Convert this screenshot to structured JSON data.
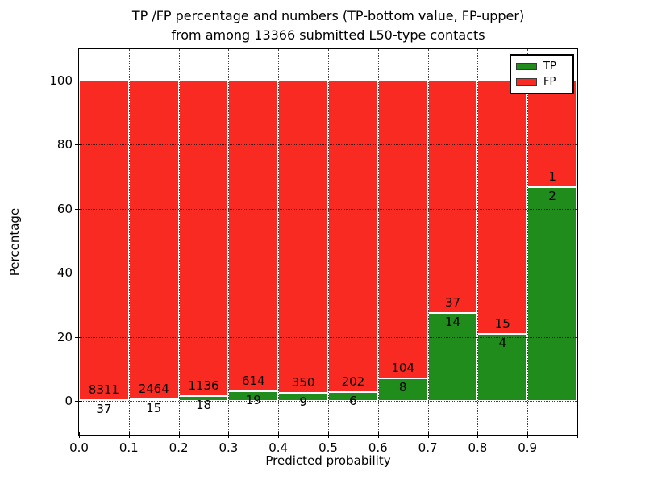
{
  "figure": {
    "background": "#ffffff",
    "title_line1": "TP /FP percentage and numbers (TP-bottom value, FP-upper)",
    "title_line2": "from among 13366 submitted L50-type contacts"
  },
  "chart_data": {
    "type": "bar",
    "stacked": true,
    "percent_normalized": true,
    "title": "TP /FP percentage and numbers (TP-bottom value, FP-upper) from among 13366 submitted L50-type contacts",
    "xlabel": "Predicted probability",
    "ylabel": "Percentage",
    "total_contacts": 13366,
    "xlim": [
      0.0,
      1.0
    ],
    "ylim": [
      -10.5,
      109.8
    ],
    "grid": "dotted",
    "legend_position": "upper right",
    "x_tick_labels": [
      "0.0",
      "0.1",
      "0.2",
      "0.3",
      "0.4",
      "0.5",
      "0.6",
      "0.7",
      "0.8",
      "0.9"
    ],
    "y_ticks": [
      0,
      20,
      40,
      60,
      80,
      100
    ],
    "series": [
      {
        "name": "TP",
        "color": "#1f8c1c"
      },
      {
        "name": "FP",
        "color": "#f92a21"
      }
    ],
    "bins": [
      {
        "range": "0.0-0.1",
        "tp": 37,
        "fp": 8311
      },
      {
        "range": "0.1-0.2",
        "tp": 15,
        "fp": 2464
      },
      {
        "range": "0.2-0.3",
        "tp": 18,
        "fp": 1136
      },
      {
        "range": "0.3-0.4",
        "tp": 19,
        "fp": 614
      },
      {
        "range": "0.4-0.5",
        "tp": 9,
        "fp": 350
      },
      {
        "range": "0.5-0.6",
        "tp": 6,
        "fp": 202
      },
      {
        "range": "0.6-0.7",
        "tp": 8,
        "fp": 104
      },
      {
        "range": "0.7-0.8",
        "tp": 14,
        "fp": 37
      },
      {
        "range": "0.8-0.9",
        "tp": 4,
        "fp": 15
      },
      {
        "range": "0.9-1.0",
        "tp": 2,
        "fp": 1
      }
    ]
  }
}
